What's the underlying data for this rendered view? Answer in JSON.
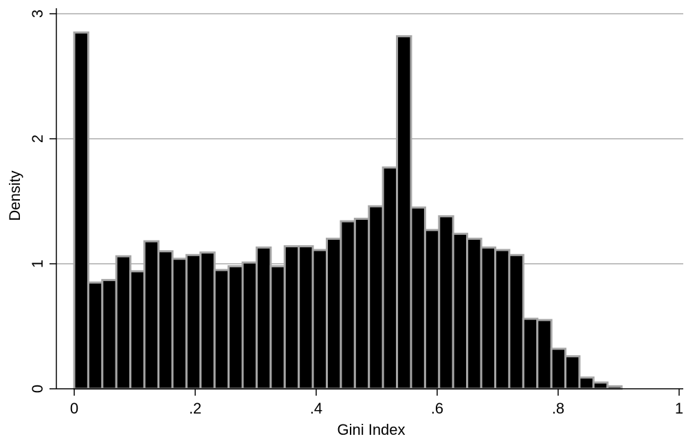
{
  "chart_data": {
    "type": "bar",
    "title": "",
    "xlabel": "Gini Index",
    "ylabel": "Density",
    "xlim": [
      0,
      1
    ],
    "ylim": [
      0,
      3
    ],
    "x_ticks": [
      {
        "value": 0,
        "label": "0"
      },
      {
        "value": 0.2,
        "label": ".2"
      },
      {
        "value": 0.4,
        "label": ".4"
      },
      {
        "value": 0.6,
        "label": ".6"
      },
      {
        "value": 0.8,
        "label": ".8"
      },
      {
        "value": 1,
        "label": "1"
      }
    ],
    "y_ticks": [
      {
        "value": 0,
        "label": "0"
      },
      {
        "value": 1,
        "label": "1"
      },
      {
        "value": 2,
        "label": "2"
      },
      {
        "value": 3,
        "label": "3"
      }
    ],
    "grid": "horizontal",
    "bin_width": 0.0232,
    "bins": [
      {
        "start": 0.0,
        "density": 2.85
      },
      {
        "start": 0.0232,
        "density": 0.85
      },
      {
        "start": 0.0464,
        "density": 0.87
      },
      {
        "start": 0.0696,
        "density": 1.06
      },
      {
        "start": 0.0928,
        "density": 0.94
      },
      {
        "start": 0.116,
        "density": 1.18
      },
      {
        "start": 0.1392,
        "density": 1.1
      },
      {
        "start": 0.1624,
        "density": 1.04
      },
      {
        "start": 0.1856,
        "density": 1.07
      },
      {
        "start": 0.2088,
        "density": 1.09
      },
      {
        "start": 0.232,
        "density": 0.95
      },
      {
        "start": 0.2552,
        "density": 0.98
      },
      {
        "start": 0.2784,
        "density": 1.01
      },
      {
        "start": 0.3016,
        "density": 1.13
      },
      {
        "start": 0.3248,
        "density": 0.98
      },
      {
        "start": 0.348,
        "density": 1.14
      },
      {
        "start": 0.3712,
        "density": 1.14
      },
      {
        "start": 0.3944,
        "density": 1.11
      },
      {
        "start": 0.4176,
        "density": 1.2
      },
      {
        "start": 0.4408,
        "density": 1.34
      },
      {
        "start": 0.464,
        "density": 1.36
      },
      {
        "start": 0.4872,
        "density": 1.46
      },
      {
        "start": 0.5104,
        "density": 1.77
      },
      {
        "start": 0.5336,
        "density": 2.82
      },
      {
        "start": 0.5568,
        "density": 1.45
      },
      {
        "start": 0.58,
        "density": 1.27
      },
      {
        "start": 0.6032,
        "density": 1.38
      },
      {
        "start": 0.6264,
        "density": 1.24
      },
      {
        "start": 0.6496,
        "density": 1.2
      },
      {
        "start": 0.6728,
        "density": 1.13
      },
      {
        "start": 0.696,
        "density": 1.11
      },
      {
        "start": 0.7192,
        "density": 1.07
      },
      {
        "start": 0.7424,
        "density": 0.56
      },
      {
        "start": 0.7656,
        "density": 0.55
      },
      {
        "start": 0.7888,
        "density": 0.32
      },
      {
        "start": 0.812,
        "density": 0.26
      },
      {
        "start": 0.8352,
        "density": 0.09
      },
      {
        "start": 0.8584,
        "density": 0.05
      },
      {
        "start": 0.8816,
        "density": 0.02
      }
    ]
  }
}
